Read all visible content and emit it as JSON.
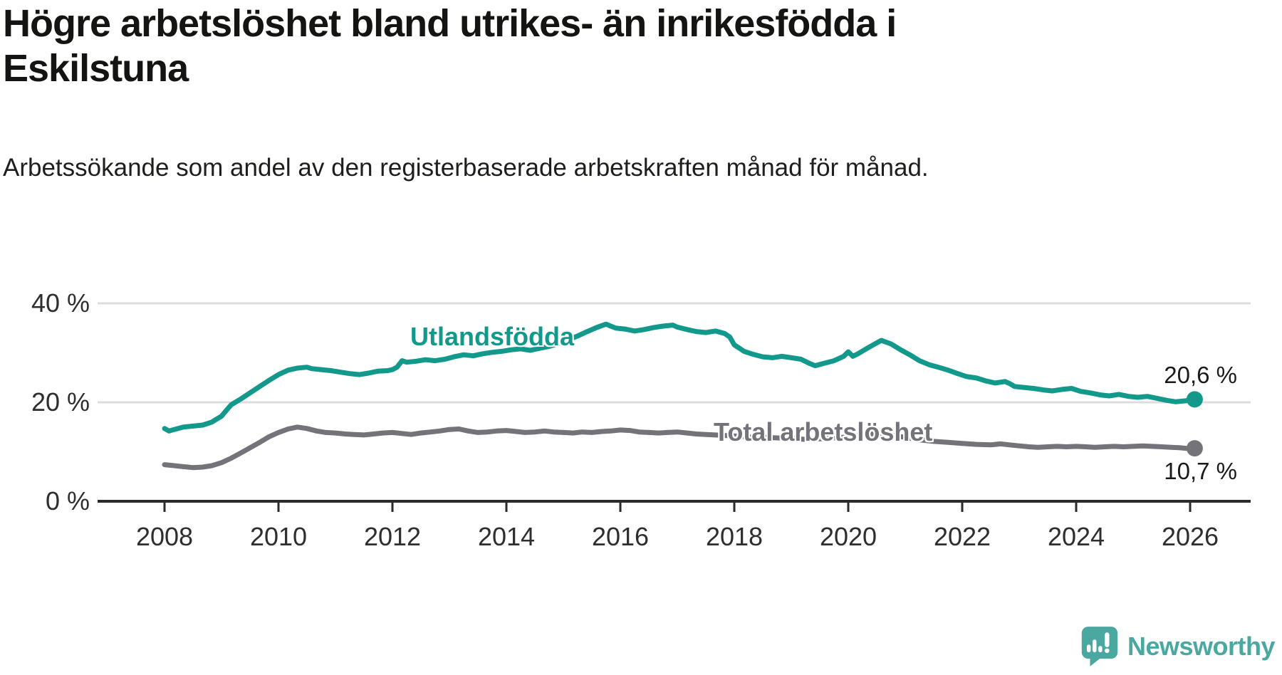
{
  "chart_data": {
    "type": "line",
    "title": "Högre arbetslöshet bland utrikes- än inrikesfödda i Eskilstuna",
    "subtitle": "Arbetssökande som andel av den registerbaserade arbetskraften månad för månad.",
    "xlabel": "",
    "ylabel": "",
    "grid": "horizontal",
    "legend": "inline-labels",
    "x_axis": {
      "ticks": [
        2008,
        2010,
        2012,
        2014,
        2016,
        2018,
        2020,
        2022,
        2024,
        2026
      ]
    },
    "y_axis": {
      "ticks": [
        0,
        20,
        40
      ],
      "tick_labels": [
        "0 %",
        "20 %",
        "40 %"
      ],
      "range": [
        0,
        43
      ],
      "unit": "%"
    },
    "series": [
      {
        "name": "Utlandsfödda",
        "color": "#12998C",
        "end_label": "20,6 %",
        "end_value": 20.6,
        "points": [
          [
            2008.0,
            14.7
          ],
          [
            2008.08,
            14.2
          ],
          [
            2008.17,
            14.5
          ],
          [
            2008.33,
            15.0
          ],
          [
            2008.5,
            15.2
          ],
          [
            2008.67,
            15.4
          ],
          [
            2008.83,
            16.0
          ],
          [
            2009.0,
            17.2
          ],
          [
            2009.08,
            18.3
          ],
          [
            2009.17,
            19.5
          ],
          [
            2009.33,
            20.6
          ],
          [
            2009.5,
            21.9
          ],
          [
            2009.67,
            23.2
          ],
          [
            2009.83,
            24.4
          ],
          [
            2010.0,
            25.6
          ],
          [
            2010.17,
            26.5
          ],
          [
            2010.33,
            26.9
          ],
          [
            2010.5,
            27.1
          ],
          [
            2010.58,
            26.8
          ],
          [
            2010.75,
            26.6
          ],
          [
            2010.92,
            26.4
          ],
          [
            2011.08,
            26.1
          ],
          [
            2011.25,
            25.8
          ],
          [
            2011.42,
            25.6
          ],
          [
            2011.58,
            25.9
          ],
          [
            2011.75,
            26.3
          ],
          [
            2011.92,
            26.4
          ],
          [
            2012.0,
            26.6
          ],
          [
            2012.08,
            27.1
          ],
          [
            2012.17,
            28.4
          ],
          [
            2012.25,
            28.1
          ],
          [
            2012.42,
            28.3
          ],
          [
            2012.58,
            28.6
          ],
          [
            2012.75,
            28.4
          ],
          [
            2012.92,
            28.7
          ],
          [
            2013.08,
            29.2
          ],
          [
            2013.25,
            29.6
          ],
          [
            2013.42,
            29.4
          ],
          [
            2013.58,
            29.8
          ],
          [
            2013.75,
            30.1
          ],
          [
            2013.92,
            30.3
          ],
          [
            2014.08,
            30.6
          ],
          [
            2014.25,
            30.8
          ],
          [
            2014.42,
            30.5
          ],
          [
            2014.58,
            30.9
          ],
          [
            2014.75,
            31.3
          ],
          [
            2014.92,
            31.9
          ],
          [
            2015.08,
            32.6
          ],
          [
            2015.25,
            33.4
          ],
          [
            2015.42,
            34.3
          ],
          [
            2015.58,
            35.1
          ],
          [
            2015.75,
            35.8
          ],
          [
            2015.83,
            35.4
          ],
          [
            2015.92,
            35.0
          ],
          [
            2016.08,
            34.8
          ],
          [
            2016.25,
            34.4
          ],
          [
            2016.42,
            34.7
          ],
          [
            2016.58,
            35.1
          ],
          [
            2016.75,
            35.4
          ],
          [
            2016.92,
            35.6
          ],
          [
            2017.0,
            35.2
          ],
          [
            2017.17,
            34.7
          ],
          [
            2017.33,
            34.3
          ],
          [
            2017.5,
            34.1
          ],
          [
            2017.67,
            34.4
          ],
          [
            2017.83,
            33.9
          ],
          [
            2017.92,
            33.2
          ],
          [
            2018.0,
            31.6
          ],
          [
            2018.08,
            31.0
          ],
          [
            2018.17,
            30.3
          ],
          [
            2018.33,
            29.7
          ],
          [
            2018.5,
            29.2
          ],
          [
            2018.67,
            29.0
          ],
          [
            2018.83,
            29.3
          ],
          [
            2019.0,
            29.0
          ],
          [
            2019.17,
            28.7
          ],
          [
            2019.33,
            27.8
          ],
          [
            2019.42,
            27.4
          ],
          [
            2019.58,
            27.9
          ],
          [
            2019.75,
            28.4
          ],
          [
            2019.92,
            29.3
          ],
          [
            2020.0,
            30.2
          ],
          [
            2020.08,
            29.3
          ],
          [
            2020.17,
            29.8
          ],
          [
            2020.33,
            30.9
          ],
          [
            2020.5,
            32.0
          ],
          [
            2020.58,
            32.5
          ],
          [
            2020.75,
            31.8
          ],
          [
            2020.92,
            30.6
          ],
          [
            2021.08,
            29.6
          ],
          [
            2021.25,
            28.4
          ],
          [
            2021.42,
            27.6
          ],
          [
            2021.58,
            27.1
          ],
          [
            2021.75,
            26.5
          ],
          [
            2021.92,
            25.8
          ],
          [
            2022.08,
            25.2
          ],
          [
            2022.25,
            24.9
          ],
          [
            2022.42,
            24.3
          ],
          [
            2022.58,
            23.9
          ],
          [
            2022.75,
            24.2
          ],
          [
            2022.83,
            23.8
          ],
          [
            2022.92,
            23.2
          ],
          [
            2023.08,
            23.0
          ],
          [
            2023.25,
            22.8
          ],
          [
            2023.42,
            22.5
          ],
          [
            2023.58,
            22.3
          ],
          [
            2023.75,
            22.6
          ],
          [
            2023.92,
            22.8
          ],
          [
            2024.08,
            22.2
          ],
          [
            2024.25,
            21.9
          ],
          [
            2024.42,
            21.5
          ],
          [
            2024.58,
            21.3
          ],
          [
            2024.75,
            21.6
          ],
          [
            2024.92,
            21.2
          ],
          [
            2025.08,
            21.0
          ],
          [
            2025.25,
            21.2
          ],
          [
            2025.42,
            20.8
          ],
          [
            2025.58,
            20.4
          ],
          [
            2025.75,
            20.1
          ],
          [
            2025.92,
            20.3
          ],
          [
            2026.08,
            20.6
          ]
        ]
      },
      {
        "name": "Total arbetslöshet",
        "color": "#75737A",
        "end_label": "10,7 %",
        "end_value": 10.7,
        "points": [
          [
            2008.0,
            7.4
          ],
          [
            2008.17,
            7.2
          ],
          [
            2008.33,
            7.0
          ],
          [
            2008.5,
            6.8
          ],
          [
            2008.67,
            6.9
          ],
          [
            2008.83,
            7.2
          ],
          [
            2009.0,
            7.8
          ],
          [
            2009.17,
            8.7
          ],
          [
            2009.33,
            9.7
          ],
          [
            2009.5,
            10.8
          ],
          [
            2009.67,
            11.9
          ],
          [
            2009.83,
            13.0
          ],
          [
            2010.0,
            13.9
          ],
          [
            2010.17,
            14.6
          ],
          [
            2010.33,
            15.0
          ],
          [
            2010.5,
            14.7
          ],
          [
            2010.67,
            14.2
          ],
          [
            2010.83,
            13.9
          ],
          [
            2011.0,
            13.8
          ],
          [
            2011.17,
            13.6
          ],
          [
            2011.33,
            13.5
          ],
          [
            2011.5,
            13.4
          ],
          [
            2011.67,
            13.6
          ],
          [
            2011.83,
            13.8
          ],
          [
            2012.0,
            13.9
          ],
          [
            2012.17,
            13.7
          ],
          [
            2012.33,
            13.5
          ],
          [
            2012.5,
            13.8
          ],
          [
            2012.67,
            14.0
          ],
          [
            2012.83,
            14.2
          ],
          [
            2013.0,
            14.5
          ],
          [
            2013.17,
            14.6
          ],
          [
            2013.33,
            14.2
          ],
          [
            2013.5,
            13.9
          ],
          [
            2013.67,
            14.0
          ],
          [
            2013.83,
            14.2
          ],
          [
            2014.0,
            14.3
          ],
          [
            2014.17,
            14.1
          ],
          [
            2014.33,
            13.9
          ],
          [
            2014.5,
            14.0
          ],
          [
            2014.67,
            14.2
          ],
          [
            2014.83,
            14.0
          ],
          [
            2015.0,
            13.9
          ],
          [
            2015.17,
            13.8
          ],
          [
            2015.33,
            14.0
          ],
          [
            2015.5,
            13.9
          ],
          [
            2015.67,
            14.1
          ],
          [
            2015.83,
            14.2
          ],
          [
            2016.0,
            14.4
          ],
          [
            2016.17,
            14.3
          ],
          [
            2016.33,
            14.0
          ],
          [
            2016.5,
            13.9
          ],
          [
            2016.67,
            13.8
          ],
          [
            2016.83,
            13.9
          ],
          [
            2017.0,
            14.0
          ],
          [
            2017.17,
            13.8
          ],
          [
            2017.33,
            13.6
          ],
          [
            2017.5,
            13.5
          ],
          [
            2017.67,
            13.4
          ],
          [
            2017.83,
            13.3
          ],
          [
            2018.0,
            13.2
          ],
          [
            2018.25,
            13.0
          ],
          [
            2018.5,
            12.9
          ],
          [
            2018.75,
            12.8
          ],
          [
            2019.0,
            12.7
          ],
          [
            2019.25,
            12.5
          ],
          [
            2019.5,
            12.6
          ],
          [
            2019.75,
            12.8
          ],
          [
            2020.0,
            13.0
          ],
          [
            2020.25,
            13.4
          ],
          [
            2020.5,
            13.7
          ],
          [
            2020.75,
            13.4
          ],
          [
            2021.0,
            12.9
          ],
          [
            2021.25,
            12.4
          ],
          [
            2021.5,
            12.1
          ],
          [
            2021.75,
            11.9
          ],
          [
            2022.0,
            11.7
          ],
          [
            2022.25,
            11.5
          ],
          [
            2022.5,
            11.4
          ],
          [
            2022.67,
            11.6
          ],
          [
            2022.83,
            11.4
          ],
          [
            2023.0,
            11.2
          ],
          [
            2023.17,
            11.0
          ],
          [
            2023.33,
            10.9
          ],
          [
            2023.5,
            11.0
          ],
          [
            2023.67,
            11.1
          ],
          [
            2023.83,
            11.0
          ],
          [
            2024.0,
            11.1
          ],
          [
            2024.17,
            11.0
          ],
          [
            2024.33,
            10.9
          ],
          [
            2024.5,
            11.0
          ],
          [
            2024.67,
            11.1
          ],
          [
            2024.83,
            11.0
          ],
          [
            2025.0,
            11.1
          ],
          [
            2025.17,
            11.2
          ],
          [
            2025.33,
            11.1
          ],
          [
            2025.5,
            11.0
          ],
          [
            2025.67,
            10.9
          ],
          [
            2025.83,
            10.8
          ],
          [
            2026.0,
            10.6
          ],
          [
            2026.08,
            10.7
          ]
        ]
      }
    ]
  },
  "footer": {
    "brand": "Newsworthy"
  }
}
